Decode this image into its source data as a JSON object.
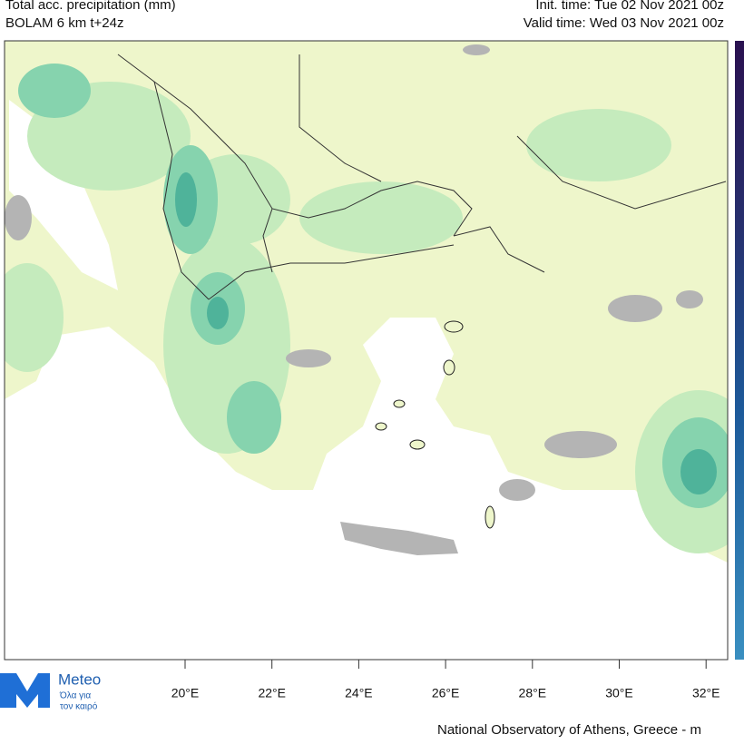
{
  "header": {
    "title": "Total acc. precipitation (mm)",
    "model": "BOLAM 6 km t+24z",
    "init_time": "Init. time: Tue 02 Nov 2021 00z",
    "valid_time": "Valid time: Wed 03 Nov 2021 00z"
  },
  "map": {
    "lon_labels": [
      "20°E",
      "22°E",
      "24°E",
      "26°E",
      "28°E",
      "30°E",
      "32°E"
    ]
  },
  "logo": {
    "name": "Meteo",
    "tagline_1": "Όλα για",
    "tagline_2": "τον καιρό"
  },
  "footer": {
    "credit": "National Observatory of Athens, Greece - m"
  }
}
